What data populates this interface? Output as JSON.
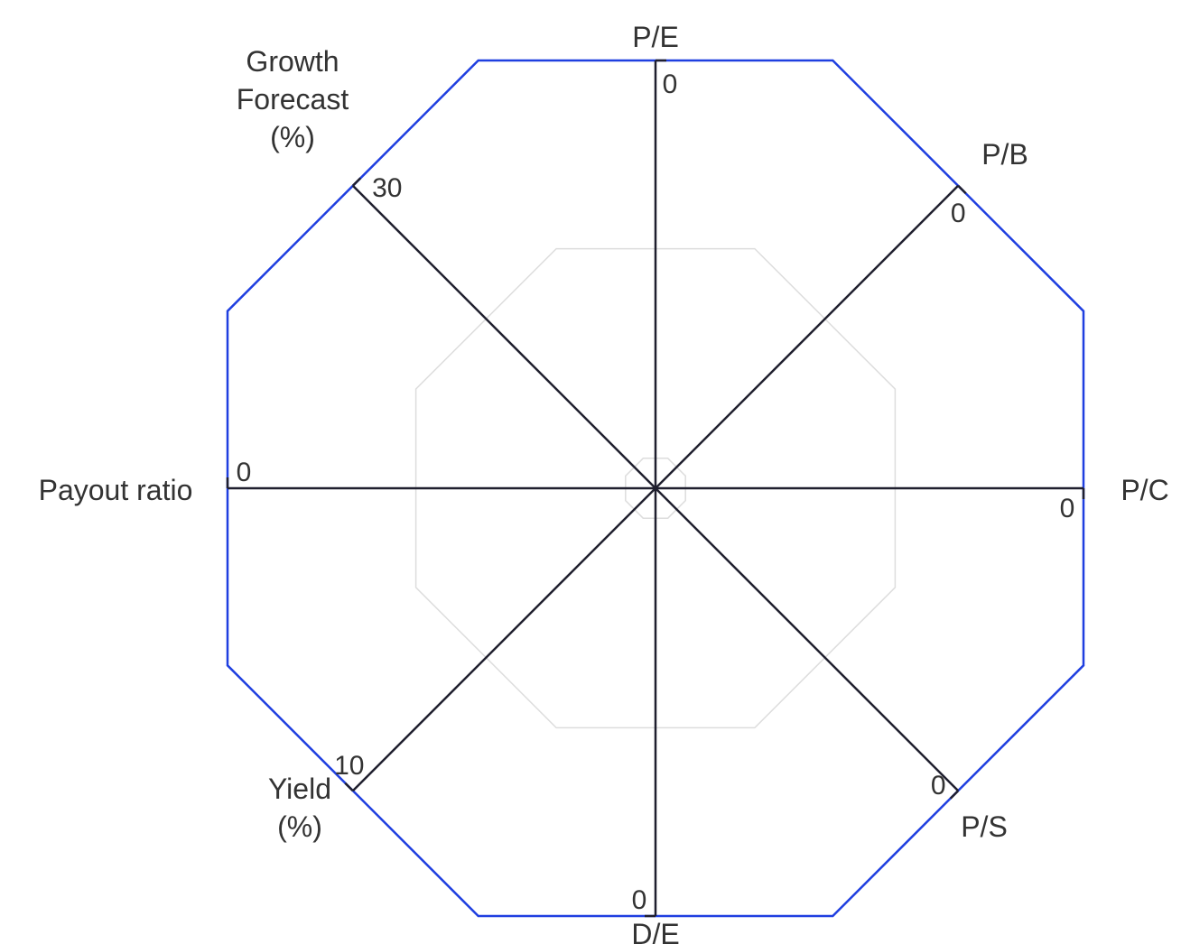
{
  "chart_data": {
    "type": "radar",
    "axes": [
      {
        "name": "P/E",
        "label_lines": [
          "P/E"
        ],
        "tick": "0"
      },
      {
        "name": "P/B",
        "label_lines": [
          "P/B"
        ],
        "tick": "0"
      },
      {
        "name": "P/C",
        "label_lines": [
          "P/C"
        ],
        "tick": "0"
      },
      {
        "name": "P/S",
        "label_lines": [
          "P/S"
        ],
        "tick": "0"
      },
      {
        "name": "D/E",
        "label_lines": [
          "D/E"
        ],
        "tick": "0"
      },
      {
        "name": "Yield (%)",
        "label_lines": [
          "Yield",
          "(%)"
        ],
        "tick": "10"
      },
      {
        "name": "Payout ratio",
        "label_lines": [
          "Payout ratio"
        ],
        "tick": "0"
      },
      {
        "name": "Growth Forecast (%)",
        "label_lines": [
          "Growth",
          "Forecast",
          "(%)"
        ],
        "tick": "30"
      }
    ],
    "grid_levels": [
      0.07,
      0.56,
      1.0
    ],
    "colors": {
      "outer_ring": "#1f3fe0",
      "axis": "#1f1f2e",
      "grid": "#dddddd",
      "text": "#333333"
    }
  }
}
